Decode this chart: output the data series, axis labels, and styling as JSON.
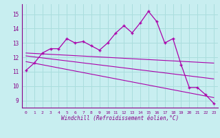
{
  "bg_color": "#c8eef0",
  "line_color": "#aa00aa",
  "grid_color": "#aadddd",
  "xlabel": "Windchill (Refroidissement éolien,°C)",
  "ylabel_ticks": [
    9,
    10,
    11,
    12,
    13,
    14,
    15
  ],
  "xlim": [
    -0.5,
    23.5
  ],
  "ylim": [
    8.5,
    15.7
  ],
  "x_ticks": [
    0,
    1,
    2,
    3,
    4,
    5,
    6,
    7,
    8,
    9,
    10,
    11,
    12,
    13,
    14,
    15,
    16,
    17,
    18,
    19,
    20,
    21,
    22,
    23
  ],
  "series1_x": [
    0,
    1,
    2,
    3,
    4,
    5,
    6,
    7,
    8,
    9,
    10,
    11,
    12,
    13,
    14,
    15,
    16,
    17,
    18,
    19,
    20,
    21,
    22,
    23
  ],
  "series1_y": [
    11.1,
    11.6,
    12.3,
    12.6,
    12.6,
    13.3,
    13.0,
    13.1,
    12.8,
    12.5,
    13.0,
    13.7,
    14.2,
    13.7,
    14.4,
    15.2,
    14.5,
    13.0,
    13.3,
    11.5,
    9.9,
    9.9,
    9.4,
    8.8
  ],
  "series2_x": [
    0,
    23
  ],
  "series2_y": [
    11.7,
    9.2
  ],
  "series3_x": [
    0,
    23
  ],
  "series3_y": [
    12.1,
    10.5
  ],
  "series4_x": [
    0,
    23
  ],
  "series4_y": [
    12.3,
    11.6
  ]
}
